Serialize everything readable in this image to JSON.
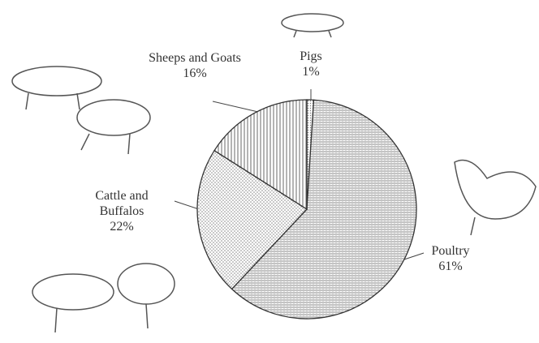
{
  "chart_data": {
    "type": "pie",
    "categories": [
      "Pigs",
      "Poultry",
      "Cattle and Buffalos",
      "Sheeps and Goats"
    ],
    "values": [
      1,
      61,
      22,
      16
    ],
    "value_labels": [
      "1%",
      "61%",
      "22%",
      "16%"
    ]
  }
}
